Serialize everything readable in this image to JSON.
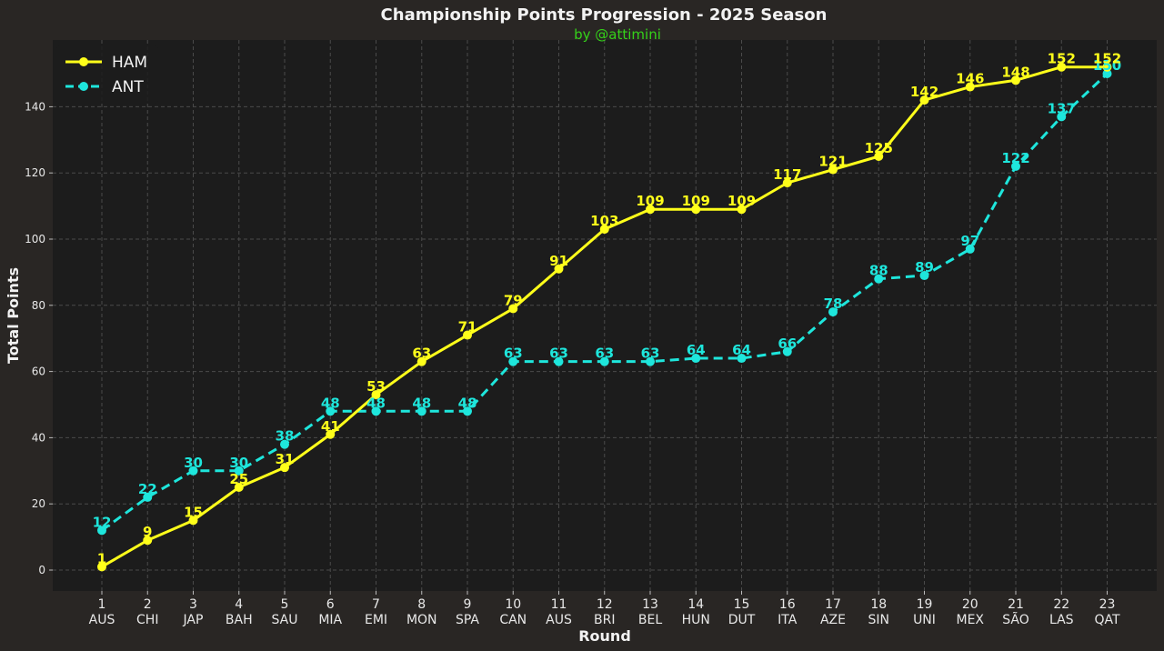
{
  "chart_data": {
    "type": "line",
    "title": "Championship Points Progression - 2025 Season",
    "subtitle": "by @attimini",
    "xlabel": "Round",
    "ylabel": "Total Points",
    "x": [
      1,
      2,
      3,
      4,
      5,
      6,
      7,
      8,
      9,
      10,
      11,
      12,
      13,
      14,
      15,
      16,
      17,
      18,
      19,
      20,
      21,
      22,
      23
    ],
    "categories": [
      "AUS",
      "CHI",
      "JAP",
      "BAH",
      "SAU",
      "MIA",
      "EMI",
      "MON",
      "SPA",
      "CAN",
      "AUS",
      "BRI",
      "BEL",
      "HUN",
      "DUT",
      "ITA",
      "AZE",
      "SIN",
      "UNI",
      "MEX",
      "SÃO",
      "LAS",
      "QAT"
    ],
    "ylim": [
      -6,
      158
    ],
    "yticks": [
      0,
      20,
      40,
      60,
      80,
      100,
      120,
      140
    ],
    "grid": true,
    "legend_position": "top-left",
    "series": [
      {
        "name": "HAM",
        "color": "#ffff1a",
        "line_style": "solid",
        "values": [
          1,
          9,
          15,
          25,
          31,
          41,
          53,
          63,
          71,
          79,
          91,
          103,
          109,
          109,
          109,
          117,
          121,
          125,
          142,
          146,
          148,
          152,
          152
        ]
      },
      {
        "name": "ANT",
        "color": "#1ee6dc",
        "line_style": "dashed",
        "values": [
          12,
          22,
          30,
          30,
          38,
          48,
          48,
          48,
          48,
          63,
          63,
          63,
          63,
          64,
          64,
          66,
          78,
          88,
          89,
          97,
          122,
          137,
          150
        ]
      }
    ]
  }
}
